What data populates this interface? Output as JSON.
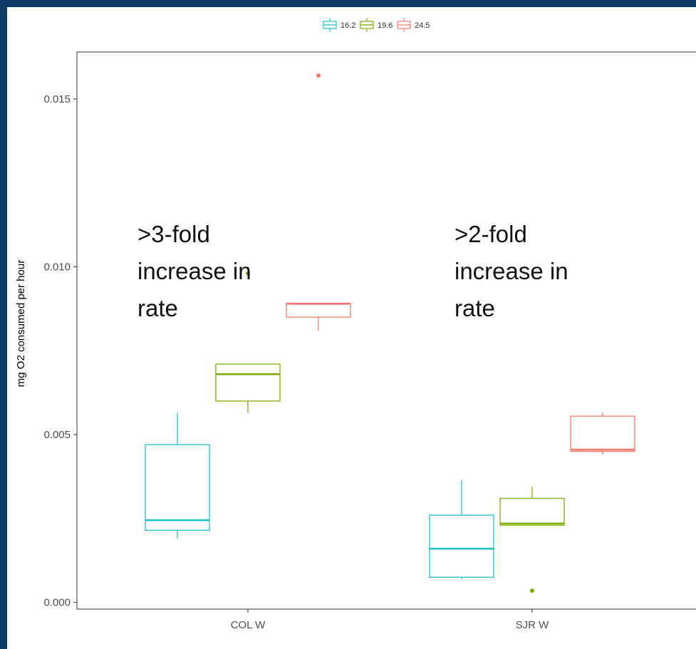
{
  "colors": {
    "frame_bg": "#0e3a66",
    "plot_bg": "#ffffff",
    "series": [
      "#1ec0c9",
      "#7aad00",
      "#f8766d"
    ]
  },
  "chart_data": {
    "type": "boxplot",
    "title": "",
    "xlabel": "",
    "ylabel": "mg O2 consumed per hour",
    "ylim": [
      -0.0002,
      0.0164
    ],
    "yticks": [
      "0.000",
      "0.005",
      "0.010",
      "0.015"
    ],
    "ytick_values": [
      0.0,
      0.005,
      0.01,
      0.015
    ],
    "categories": [
      "COL W",
      "SJR  W"
    ],
    "legend_position": "top",
    "grid": false,
    "series": [
      {
        "name": "16.2",
        "boxes": [
          {
            "category": "COL W",
            "whisker_low": 0.0019,
            "q1": 0.00215,
            "median": 0.00245,
            "q3": 0.0047,
            "whisker_high": 0.00565,
            "outliers": []
          },
          {
            "category": "SJR  W",
            "whisker_low": 0.0007,
            "q1": 0.00075,
            "median": 0.0016,
            "q3": 0.0026,
            "whisker_high": 0.00365,
            "outliers": []
          }
        ]
      },
      {
        "name": "19.6",
        "boxes": [
          {
            "category": "COL W",
            "whisker_low": 0.00565,
            "q1": 0.006,
            "median": 0.0068,
            "q3": 0.0071,
            "whisker_high": 0.0071,
            "outliers": [
              0.0098
            ]
          },
          {
            "category": "SJR  W",
            "whisker_low": 0.0023,
            "q1": 0.0023,
            "median": 0.00235,
            "q3": 0.0031,
            "whisker_high": 0.00345,
            "outliers": [
              0.00035
            ]
          }
        ]
      },
      {
        "name": "24.5",
        "boxes": [
          {
            "category": "COL W",
            "whisker_low": 0.0081,
            "q1": 0.0085,
            "median": 0.0089,
            "q3": 0.0089,
            "whisker_high": 0.0089,
            "outliers": [
              0.0157
            ]
          },
          {
            "category": "SJR  W",
            "whisker_low": 0.0044,
            "q1": 0.0045,
            "median": 0.00455,
            "q3": 0.00555,
            "whisker_high": 0.00565,
            "outliers": []
          }
        ]
      }
    ],
    "annotations": [
      {
        "lines": [
          ">3-fold",
          "increase in",
          "rate"
        ],
        "category": "COL W"
      },
      {
        "lines": [
          ">2-fold",
          "increase in",
          "rate"
        ],
        "category": "SJR  W"
      }
    ]
  }
}
